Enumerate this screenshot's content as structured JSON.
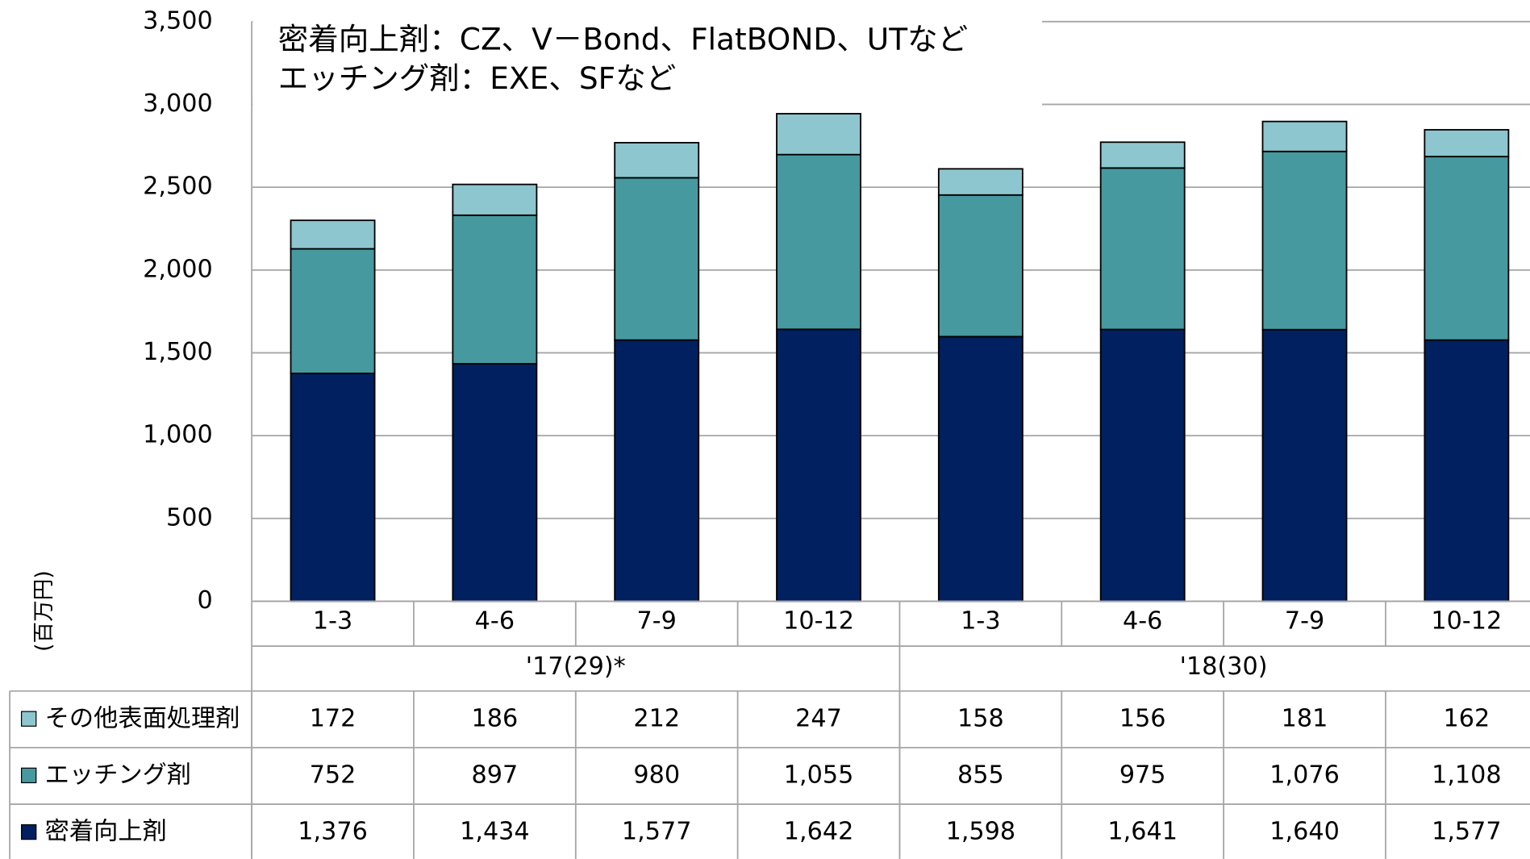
{
  "chart_data": {
    "type": "bar",
    "stacked": true,
    "annotations": [
      "密着向上剤：CZ、V－Bond、FlatBOND、UTなど",
      "エッチング剤：EXE、SFなど"
    ],
    "y_label": "(百万円)",
    "categories": [
      "1-3",
      "4-6",
      "7-9",
      "10-12",
      "1-3",
      "4-6",
      "7-9",
      "10-12"
    ],
    "x_groups": [
      "'17(29)*",
      "'18(30)"
    ],
    "series": [
      {
        "name": "その他表面処理剤",
        "color": "#8dc6ce",
        "values": [
          172,
          186,
          212,
          247,
          158,
          156,
          181,
          162
        ],
        "value_labels": [
          "172",
          "186",
          "212",
          "247",
          "158",
          "156",
          "181",
          "162"
        ]
      },
      {
        "name": "エッチング剤",
        "color": "#46999f",
        "values": [
          752,
          897,
          980,
          1055,
          855,
          975,
          1076,
          1108
        ],
        "value_labels": [
          "752",
          "897",
          "980",
          "1,055",
          "855",
          "975",
          "1,076",
          "1,108"
        ]
      },
      {
        "name": "密着向上剤",
        "color": "#002060",
        "values": [
          1376,
          1434,
          1577,
          1642,
          1598,
          1641,
          1640,
          1577
        ],
        "value_labels": [
          "1,376",
          "1,434",
          "1,577",
          "1,642",
          "1,598",
          "1,641",
          "1,640",
          "1,577"
        ]
      }
    ],
    "ylim": [
      0,
      3500
    ],
    "yticks": [
      0,
      500,
      {
        "value": 1000,
        "label": "1,000"
      },
      {
        "value": 1500,
        "label": "1,500"
      },
      {
        "value": 2000,
        "label": "2,000"
      },
      {
        "value": 2500,
        "label": "2,500"
      },
      {
        "value": 3000,
        "label": "3,000"
      },
      {
        "value": 3500,
        "label": "3,500"
      }
    ],
    "grid": true
  }
}
